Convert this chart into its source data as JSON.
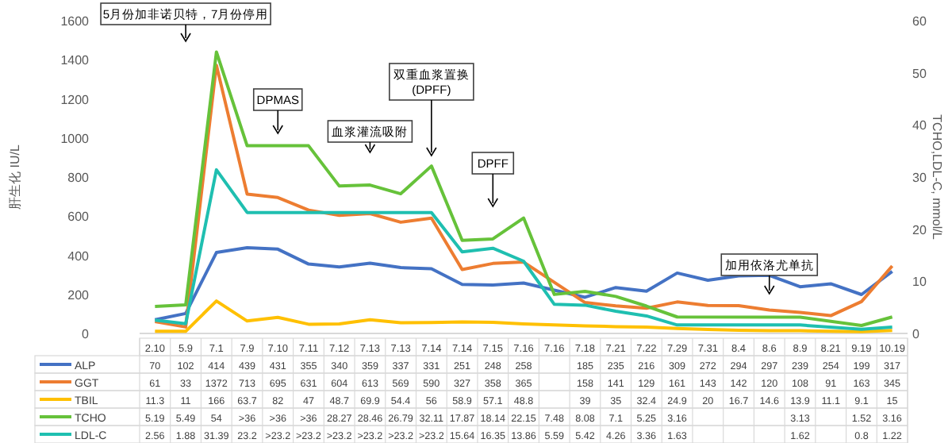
{
  "chart_data": {
    "type": "line",
    "ylabel": "肝生化 IU/L",
    "y2label": "TCHO,LDL-C, mmol/L",
    "categories": [
      "2.10",
      "5.9",
      "7.1",
      "7.9",
      "7.10",
      "7.11",
      "7.12",
      "7.13",
      "7.13",
      "7.14",
      "7.14",
      "7.15",
      "7.16",
      "7.16",
      "7.18",
      "7.21",
      "7.22",
      "7.29",
      "7.31",
      "8.4",
      "8.6",
      "8.9",
      "8.21",
      "9.19",
      "10.19"
    ],
    "ylim": [
      0,
      1600
    ],
    "yticks": [
      0,
      200,
      400,
      600,
      800,
      1000,
      1200,
      1400,
      1600
    ],
    "y2lim": [
      0,
      60
    ],
    "y2ticks": [
      0,
      10,
      20,
      30,
      40,
      50,
      60
    ],
    "grid": false,
    "legend": "bottom",
    "marker": "none",
    "line_style": "solid",
    "series": [
      {
        "name": "ALP",
        "color": "#4472c4",
        "values": [
          70,
          102,
          414,
          439,
          431,
          355,
          340,
          359,
          337,
          331,
          251,
          248,
          258,
          null,
          185,
          235,
          216,
          309,
          272,
          294,
          297,
          239,
          254,
          199,
          317
        ]
      },
      {
        "name": "GGT",
        "color": "#ed7d31",
        "values": [
          61,
          33,
          1372,
          713,
          695,
          631,
          604,
          613,
          569,
          590,
          327,
          358,
          365,
          null,
          158,
          141,
          129,
          161,
          143,
          142,
          120,
          108,
          91,
          163,
          345
        ]
      },
      {
        "name": "TBIL",
        "color": "#ffc000",
        "values": [
          11.3,
          11,
          166,
          63.7,
          82,
          47,
          48.7,
          69.9,
          54.4,
          56,
          58.9,
          57.1,
          48.8,
          null,
          39,
          35,
          32.4,
          24.9,
          20,
          16.7,
          14.6,
          13.9,
          11.1,
          9.1,
          15
        ]
      },
      {
        "name": "TCHO",
        "color": "#66c23a",
        "axis": "y2",
        "values": [
          5.19,
          5.49,
          54,
          36,
          36,
          36,
          28.27,
          28.46,
          26.79,
          32.11,
          17.87,
          18.14,
          22.15,
          7.48,
          8.08,
          7.1,
          5.25,
          3.16,
          null,
          null,
          null,
          3.13,
          null,
          1.52,
          3.16
        ],
        "value_labels": [
          "5.19",
          "5.49",
          "54",
          ">36",
          ">36",
          ">36",
          "28.27",
          "28.46",
          "26.79",
          "32.11",
          "17.87",
          "18.14",
          "22.15",
          "7.48",
          "8.08",
          "7.1",
          "5.25",
          "3.16",
          null,
          null,
          null,
          "3.13",
          null,
          "1.52",
          "3.16"
        ]
      },
      {
        "name": "LDL-C",
        "color": "#1fbfb0",
        "axis": "y2",
        "values": [
          2.56,
          1.88,
          31.39,
          23.2,
          23.2,
          23.2,
          23.2,
          23.2,
          23.2,
          23.2,
          15.64,
          16.35,
          13.86,
          5.59,
          5.42,
          4.26,
          3.36,
          1.63,
          null,
          null,
          null,
          1.62,
          null,
          0.8,
          1.22
        ],
        "value_labels": [
          "2.56",
          "1.88",
          "31.39",
          "23.2",
          ">23.2",
          ">23.2",
          ">23.2",
          ">23.2",
          ">23.2",
          ">23.2",
          "15.64",
          "16.35",
          "13.86",
          "5.59",
          "5.42",
          "4.26",
          "3.36",
          "1.63",
          null,
          null,
          null,
          "1.62",
          null,
          "0.8",
          "1.22"
        ]
      }
    ],
    "data_labels": true,
    "annotations": [
      "5月份加非诺贝特，7月份停用",
      "DPMAS",
      "血浆灌流吸附",
      "双重血浆置换\n(DPFF)",
      "DPFF",
      "加用依洛尤单抗"
    ]
  }
}
